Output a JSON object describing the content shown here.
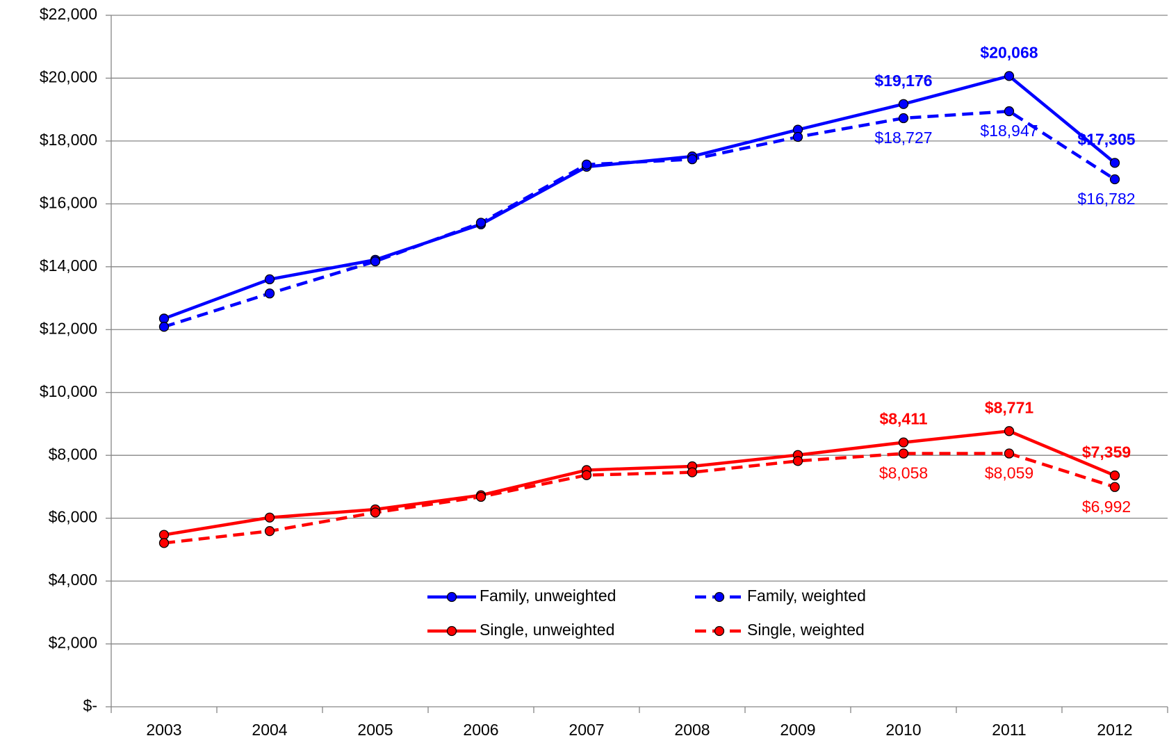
{
  "chart_data": {
    "type": "line",
    "categories": [
      "2003",
      "2004",
      "2005",
      "2006",
      "2007",
      "2008",
      "2009",
      "2010",
      "2011",
      "2012"
    ],
    "series": [
      {
        "name": "Family, unweighted",
        "color": "#0000ff",
        "dashed": false,
        "values": [
          12350,
          13600,
          14220,
          15350,
          17180,
          17510,
          18360,
          19176,
          20068,
          17305
        ],
        "value_labels": [
          null,
          null,
          null,
          null,
          null,
          null,
          null,
          "$19,176",
          "$20,068",
          "$17,305"
        ]
      },
      {
        "name": "Family, weighted",
        "color": "#0000ff",
        "dashed": true,
        "values": [
          12090,
          13150,
          14170,
          15400,
          17250,
          17420,
          18130,
          18727,
          18947,
          16782
        ],
        "value_labels": [
          null,
          null,
          null,
          null,
          null,
          null,
          null,
          "$18,727",
          "$18,947",
          "$16,782"
        ]
      },
      {
        "name": "Single, unweighted",
        "color": "#ff0000",
        "dashed": false,
        "values": [
          5470,
          6020,
          6280,
          6730,
          7530,
          7650,
          8010,
          8411,
          8771,
          7359
        ],
        "value_labels": [
          null,
          null,
          null,
          null,
          null,
          null,
          null,
          "$8,411",
          "$8,771",
          "$7,359"
        ]
      },
      {
        "name": "Single, weighted",
        "color": "#ff0000",
        "dashed": true,
        "values": [
          5210,
          5590,
          6180,
          6680,
          7370,
          7460,
          7820,
          8058,
          8059,
          6992
        ],
        "value_labels": [
          null,
          null,
          null,
          null,
          null,
          null,
          null,
          "$8,058",
          "$8,059",
          "$6,992"
        ]
      }
    ],
    "ylim": [
      0,
      22000
    ],
    "yticks": [
      {
        "value": 0,
        "label": "$-"
      },
      {
        "value": 2000,
        "label": "$2,000"
      },
      {
        "value": 4000,
        "label": "$4,000"
      },
      {
        "value": 6000,
        "label": "$6,000"
      },
      {
        "value": 8000,
        "label": "$8,000"
      },
      {
        "value": 10000,
        "label": "$10,000"
      },
      {
        "value": 12000,
        "label": "$12,000"
      },
      {
        "value": 14000,
        "label": "$14,000"
      },
      {
        "value": 16000,
        "label": "$16,000"
      },
      {
        "value": 18000,
        "label": "$18,000"
      },
      {
        "value": 20000,
        "label": "$20,000"
      },
      {
        "value": 22000,
        "label": "$22,000"
      }
    ],
    "grid": true,
    "legend": "lower center"
  }
}
